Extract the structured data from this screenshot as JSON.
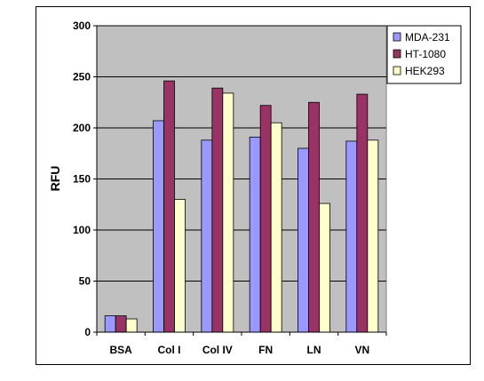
{
  "chart_data": {
    "type": "bar",
    "categories": [
      "BSA",
      "Col I",
      "Col IV",
      "FN",
      "LN",
      "VN"
    ],
    "series": [
      {
        "name": "MDA-231",
        "color": "#9999ff",
        "values": [
          16,
          207,
          188,
          191,
          180,
          187
        ]
      },
      {
        "name": "HT-1080",
        "color": "#993366",
        "values": [
          16,
          246,
          239,
          222,
          225,
          233
        ]
      },
      {
        "name": "HEK293",
        "color": "#ffffcc",
        "values": [
          13,
          130,
          234,
          205,
          126,
          188
        ]
      }
    ],
    "title": "",
    "xlabel": "",
    "ylabel": "RFU",
    "ylim": [
      0,
      300
    ],
    "yticks": [
      0,
      50,
      100,
      150,
      200,
      250,
      300
    ],
    "grid": true,
    "plot_background": "#c0c0c0",
    "legend_position": "top-right"
  }
}
